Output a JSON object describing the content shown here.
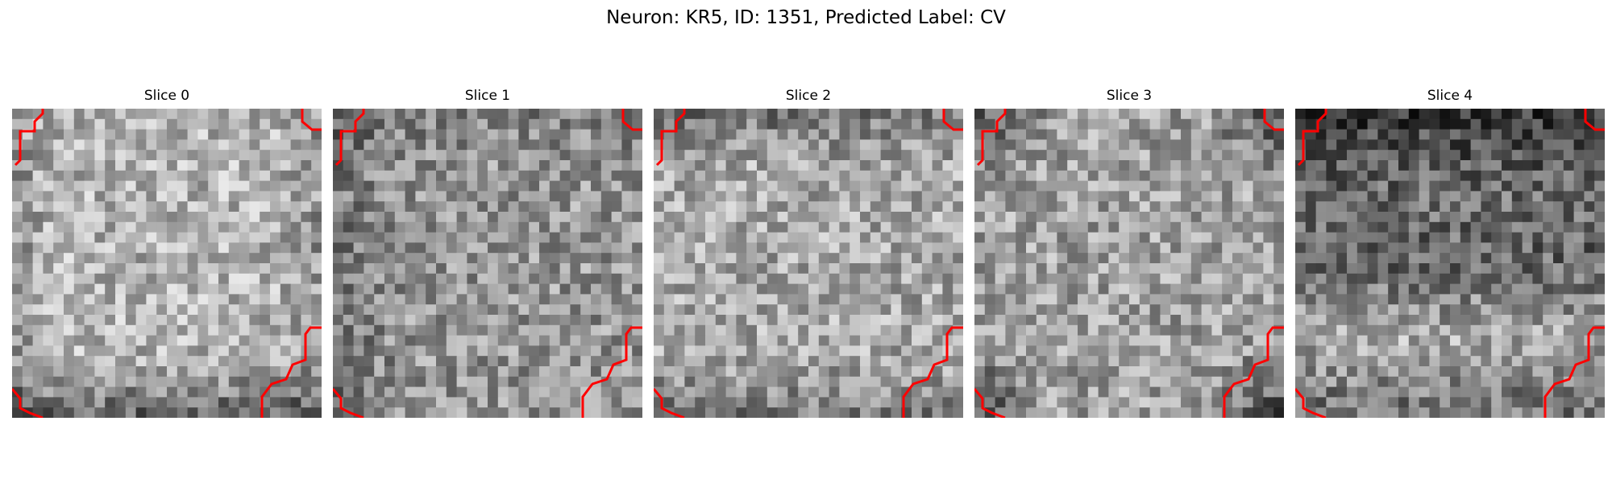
{
  "figure": {
    "title": "Neuron: KR5, ID: 1351, Predicted Label: CV",
    "colormap": "gray",
    "contour_color": "#ff0000",
    "background_color": "#ffffff"
  },
  "panels": [
    {
      "title": "Slice 0",
      "seed": 11,
      "base": 178,
      "edge": "bottom",
      "contours": [
        "top-left",
        "top-right",
        "bottom-left",
        "bottom-right"
      ]
    },
    {
      "title": "Slice 1",
      "seed": 23,
      "base": 150,
      "edge": "left",
      "contours": [
        "top-left",
        "top-right",
        "bottom-left",
        "bottom-right"
      ]
    },
    {
      "title": "Slice 2",
      "seed": 37,
      "base": 168,
      "edge": "top-bottom",
      "contours": [
        "top-left",
        "top-right",
        "bottom-left",
        "bottom-right"
      ]
    },
    {
      "title": "Slice 3",
      "seed": 41,
      "base": 160,
      "edge": "corners",
      "contours": [
        "top-left",
        "top-right",
        "bottom-left",
        "bottom-right"
      ]
    },
    {
      "title": "Slice 4",
      "seed": 53,
      "base": 120,
      "edge": "top-dark",
      "contours": [
        "top-left",
        "top-right",
        "bottom-left",
        "bottom-right"
      ]
    }
  ]
}
